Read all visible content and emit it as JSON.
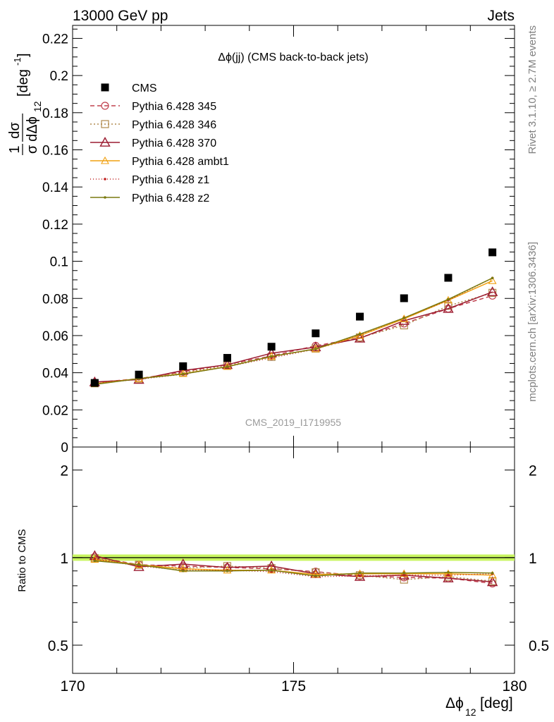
{
  "header": {
    "left_label": "13000 GeV pp",
    "right_label": "Jets"
  },
  "side_labels": {
    "rivet": "Rivet 3.1.10, ≥ 2.7M events",
    "mcplots": "mcplots.cern.ch [arXiv:1306.3436]"
  },
  "chart_data": [
    {
      "type": "line",
      "panel": "main",
      "title": "Δϕ(jj) (CMS back-to-back jets)",
      "watermark": "CMS_2019_I1719955",
      "ylabel_parts": {
        "frac_num": "1",
        "frac_den": "σ",
        "dnum": "dσ",
        "dden": "dΔϕ",
        "sub": "12",
        "unit": "[deg",
        "unit_sup": "-1",
        "unit_close": "]"
      },
      "xlim": [
        170,
        180
      ],
      "ylim": [
        0,
        0.227
      ],
      "xticks": [
        170,
        175,
        180
      ],
      "yticks": [
        0,
        0.02,
        0.04,
        0.06,
        0.08,
        0.1,
        0.12,
        0.14,
        0.16,
        0.18,
        0.2,
        0.22
      ],
      "ytick_labels": [
        "0",
        "0.02",
        "0.04",
        "0.06",
        "0.08",
        "0.1",
        "0.12",
        "0.14",
        "0.16",
        "0.18",
        "0.2",
        "0.22"
      ],
      "legend_position": "top-left",
      "x": [
        170.5,
        171.5,
        172.5,
        173.5,
        174.5,
        175.5,
        176.5,
        177.5,
        178.5,
        179.5
      ],
      "data": {
        "name": "CMS",
        "values": [
          0.0345,
          0.039,
          0.0435,
          0.048,
          0.054,
          0.0612,
          0.0702,
          0.0801,
          0.0911,
          0.1048
        ],
        "color": "#000000"
      },
      "series": [
        {
          "name": "Pythia 6.428 345",
          "color": "#c0404e",
          "dash": "6,4",
          "marker": "circle",
          "values": [
            0.0347,
            0.0368,
            0.0405,
            0.0445,
            0.049,
            0.0545,
            0.0588,
            0.0665,
            0.0745,
            0.0815
          ]
        },
        {
          "name": "Pythia 6.428 346",
          "color": "#b08a4e",
          "dash": "2,3",
          "marker": "square",
          "values": [
            0.0343,
            0.0368,
            0.04,
            0.044,
            0.0485,
            0.053,
            0.059,
            0.0655,
            0.076,
            0.083
          ]
        },
        {
          "name": "Pythia 6.428 370",
          "color": "#9b1b30",
          "dash": "",
          "marker": "triangle",
          "values": [
            0.035,
            0.0363,
            0.0412,
            0.0443,
            0.0505,
            0.0538,
            0.0585,
            0.068,
            0.0745,
            0.0835
          ]
        },
        {
          "name": "Pythia 6.428 ambt1",
          "color": "#f0a010",
          "dash": "",
          "marker": "triangle-small",
          "values": [
            0.034,
            0.0368,
            0.0395,
            0.0433,
            0.0488,
            0.0528,
            0.06,
            0.069,
            0.079,
            0.0895
          ]
        },
        {
          "name": "Pythia 6.428 z1",
          "color": "#c02020",
          "dash": "1,3",
          "marker": "dot",
          "values": [
            0.0342,
            0.0365,
            0.0392,
            0.0433,
            0.048,
            0.0527,
            0.0605,
            0.0695,
            0.079,
            0.091
          ]
        },
        {
          "name": "Pythia 6.428 z2",
          "color": "#7a7a10",
          "dash": "",
          "marker": "dot",
          "values": [
            0.0337,
            0.0368,
            0.0393,
            0.0432,
            0.0488,
            0.0528,
            0.0608,
            0.0695,
            0.0795,
            0.091
          ]
        }
      ]
    },
    {
      "type": "line",
      "panel": "ratio",
      "ylabel": "Ratio to CMS",
      "xlabel_parts": {
        "main": "Δϕ",
        "sub": "12",
        "unit": " [deg]"
      },
      "log_scale_y": true,
      "xlim": [
        170,
        180
      ],
      "ylim": [
        0.4,
        2.4
      ],
      "xticks": [
        170,
        175,
        180
      ],
      "xtick_labels": [
        "170",
        "175",
        "180"
      ],
      "yticks_major": [
        0.5,
        1,
        2
      ],
      "ytick_labels": [
        "0.5",
        "1",
        "2"
      ],
      "yticks_minor": [
        0.4,
        0.6,
        0.7,
        0.8,
        0.9,
        1.5
      ],
      "band_color": "#c8f560",
      "x": [
        170.5,
        171.5,
        172.5,
        173.5,
        174.5,
        175.5,
        176.5,
        177.5,
        178.5,
        179.5
      ],
      "series": [
        {
          "name": "Pythia 6.428 345",
          "color": "#c0404e",
          "dash": "6,4",
          "marker": "circle",
          "values": [
            1.005,
            0.945,
            0.935,
            0.925,
            0.915,
            0.895,
            0.865,
            0.855,
            0.85,
            0.815
          ]
        },
        {
          "name": "Pythia 6.428 346",
          "color": "#b08a4e",
          "dash": "2,3",
          "marker": "square",
          "values": [
            0.995,
            0.945,
            0.92,
            0.935,
            0.92,
            0.89,
            0.87,
            0.84,
            0.86,
            0.83
          ]
        },
        {
          "name": "Pythia 6.428 370",
          "color": "#9b1b30",
          "dash": "",
          "marker": "triangle",
          "values": [
            1.015,
            0.93,
            0.95,
            0.925,
            0.935,
            0.88,
            0.86,
            0.87,
            0.85,
            0.825
          ]
        },
        {
          "name": "Pythia 6.428 ambt1",
          "color": "#f0a010",
          "dash": "",
          "marker": "triangle-small",
          "values": [
            0.985,
            0.945,
            0.915,
            0.905,
            0.905,
            0.875,
            0.88,
            0.88,
            0.88,
            0.87
          ]
        },
        {
          "name": "Pythia 6.428 z1",
          "color": "#c02020",
          "dash": "1,3",
          "marker": "dot",
          "values": [
            0.99,
            0.935,
            0.905,
            0.905,
            0.895,
            0.86,
            0.865,
            0.87,
            0.87,
            0.88
          ]
        },
        {
          "name": "Pythia 6.428 z2",
          "color": "#7a7a10",
          "dash": "",
          "marker": "dot",
          "values": [
            0.975,
            0.945,
            0.9,
            0.9,
            0.905,
            0.865,
            0.885,
            0.885,
            0.89,
            0.885
          ]
        }
      ]
    }
  ]
}
